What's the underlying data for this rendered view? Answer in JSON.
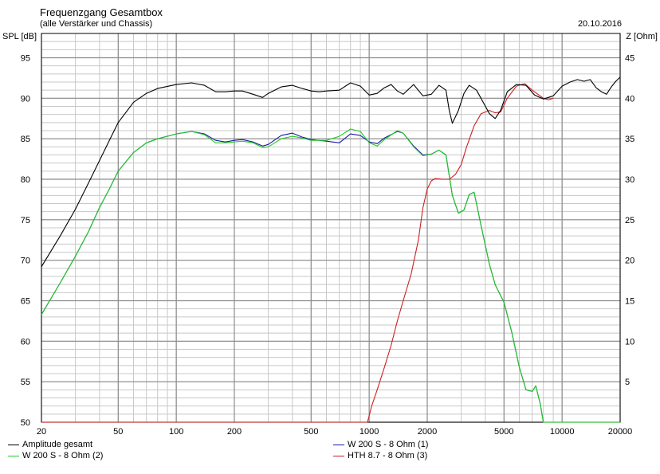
{
  "chart_data": {
    "type": "line",
    "title": "Frequenzgang Gesamtbox",
    "subtitle": "(alle Verstärker und Chassis)",
    "date": "20.10.2016",
    "ylabel_left": "SPL [dB]",
    "ylabel_right": "Z [Ohm]",
    "x_scale": "log",
    "xlim": [
      20,
      20000
    ],
    "ylim": [
      50,
      98
    ],
    "ylim_right": [
      0,
      48
    ],
    "x_ticks": [
      20,
      50,
      100,
      200,
      500,
      1000,
      2000,
      5000,
      10000,
      20000
    ],
    "y_ticks": [
      50,
      55,
      60,
      65,
      70,
      75,
      80,
      85,
      90,
      95
    ],
    "y_ticks_right": [
      5,
      10,
      15,
      20,
      25,
      30,
      35,
      40,
      45
    ],
    "grid": true,
    "legend_placement": "bottom",
    "series": [
      {
        "name": "Amplitude gesamt",
        "color": "#000000",
        "points": [
          [
            20,
            69.2
          ],
          [
            25,
            73
          ],
          [
            30,
            76.3
          ],
          [
            35,
            79.5
          ],
          [
            40,
            82.3
          ],
          [
            45,
            84.8
          ],
          [
            50,
            87
          ],
          [
            60,
            89.5
          ],
          [
            70,
            90.6
          ],
          [
            80,
            91.2
          ],
          [
            100,
            91.7
          ],
          [
            120,
            91.9
          ],
          [
            140,
            91.6
          ],
          [
            160,
            90.8
          ],
          [
            180,
            90.8
          ],
          [
            200,
            90.9
          ],
          [
            220,
            90.9
          ],
          [
            250,
            90.5
          ],
          [
            280,
            90.1
          ],
          [
            300,
            90.6
          ],
          [
            350,
            91.4
          ],
          [
            400,
            91.6
          ],
          [
            450,
            91.2
          ],
          [
            500,
            90.9
          ],
          [
            550,
            90.8
          ],
          [
            600,
            90.9
          ],
          [
            700,
            91
          ],
          [
            800,
            91.9
          ],
          [
            900,
            91.5
          ],
          [
            1000,
            90.4
          ],
          [
            1100,
            90.6
          ],
          [
            1200,
            91.3
          ],
          [
            1300,
            91.7
          ],
          [
            1400,
            90.9
          ],
          [
            1500,
            90.5
          ],
          [
            1700,
            91.7
          ],
          [
            1900,
            90.3
          ],
          [
            2100,
            90.5
          ],
          [
            2300,
            91.6
          ],
          [
            2500,
            91
          ],
          [
            2600,
            88.5
          ],
          [
            2700,
            86.9
          ],
          [
            2900,
            88.5
          ],
          [
            3100,
            90.6
          ],
          [
            3300,
            91.6
          ],
          [
            3600,
            91
          ],
          [
            3900,
            89.5
          ],
          [
            4200,
            88.1
          ],
          [
            4500,
            87.5
          ],
          [
            4800,
            88.5
          ],
          [
            5200,
            90.8
          ],
          [
            5800,
            91.7
          ],
          [
            6500,
            91.6
          ],
          [
            7200,
            90.4
          ],
          [
            8000,
            89.9
          ],
          [
            9000,
            90.3
          ],
          [
            10000,
            91.5
          ],
          [
            11000,
            92
          ],
          [
            12000,
            92.3
          ],
          [
            13000,
            92.1
          ],
          [
            14000,
            92.3
          ],
          [
            15000,
            91.3
          ],
          [
            16000,
            90.8
          ],
          [
            17000,
            90.5
          ],
          [
            18000,
            91.4
          ],
          [
            19000,
            92.1
          ],
          [
            20000,
            92.6
          ]
        ]
      },
      {
        "name": "W 200 S - 8 Ohm (1)",
        "color": "#1a1aa6",
        "points": [
          [
            20,
            63.3
          ],
          [
            25,
            67.2
          ],
          [
            30,
            70.5
          ],
          [
            35,
            73.5
          ],
          [
            40,
            76.5
          ],
          [
            45,
            78.8
          ],
          [
            50,
            81
          ],
          [
            60,
            83.3
          ],
          [
            70,
            84.5
          ],
          [
            80,
            85
          ],
          [
            100,
            85.6
          ],
          [
            120,
            85.9
          ],
          [
            140,
            85.6
          ],
          [
            160,
            84.8
          ],
          [
            180,
            84.6
          ],
          [
            200,
            84.8
          ],
          [
            220,
            84.9
          ],
          [
            250,
            84.6
          ],
          [
            280,
            84.1
          ],
          [
            300,
            84.3
          ],
          [
            350,
            85.4
          ],
          [
            400,
            85.7
          ],
          [
            450,
            85.2
          ],
          [
            500,
            84.9
          ],
          [
            600,
            84.7
          ],
          [
            700,
            84.5
          ],
          [
            800,
            85.6
          ],
          [
            900,
            85.4
          ],
          [
            1000,
            84.6
          ],
          [
            1100,
            84.4
          ],
          [
            1200,
            85.1
          ],
          [
            1400,
            85.9
          ],
          [
            1500,
            85.7
          ],
          [
            1700,
            84.1
          ],
          [
            1900,
            83
          ],
          [
            2100,
            83.1
          ],
          [
            2300,
            83.6
          ],
          [
            2500,
            83
          ],
          [
            2700,
            78
          ],
          [
            2900,
            75.8
          ],
          [
            3100,
            76.2
          ],
          [
            3300,
            78.1
          ],
          [
            3500,
            78.4
          ],
          [
            3800,
            74.3
          ],
          [
            4200,
            69.5
          ],
          [
            4500,
            67
          ],
          [
            5000,
            64.8
          ],
          [
            5500,
            61
          ],
          [
            6000,
            56.8
          ],
          [
            6500,
            54
          ],
          [
            7000,
            53.8
          ],
          [
            7300,
            54.5
          ],
          [
            7700,
            52.3
          ],
          [
            8000,
            50
          ],
          [
            20000,
            50
          ]
        ]
      },
      {
        "name": "W 200 S - 8 Ohm (2)",
        "color": "#20cc20",
        "points": [
          [
            20,
            63.3
          ],
          [
            25,
            67.2
          ],
          [
            30,
            70.5
          ],
          [
            35,
            73.5
          ],
          [
            40,
            76.5
          ],
          [
            45,
            78.8
          ],
          [
            50,
            81
          ],
          [
            60,
            83.3
          ],
          [
            70,
            84.5
          ],
          [
            80,
            85
          ],
          [
            100,
            85.6
          ],
          [
            120,
            85.9
          ],
          [
            140,
            85.5
          ],
          [
            160,
            84.5
          ],
          [
            180,
            84.5
          ],
          [
            200,
            84.6
          ],
          [
            220,
            84.7
          ],
          [
            250,
            84.5
          ],
          [
            280,
            83.9
          ],
          [
            300,
            84
          ],
          [
            350,
            85
          ],
          [
            400,
            85.3
          ],
          [
            450,
            85.1
          ],
          [
            500,
            84.8
          ],
          [
            600,
            84.8
          ],
          [
            700,
            85.3
          ],
          [
            800,
            86.2
          ],
          [
            900,
            85.9
          ],
          [
            1000,
            84.5
          ],
          [
            1100,
            84.1
          ],
          [
            1200,
            84.9
          ],
          [
            1400,
            86
          ],
          [
            1500,
            85.7
          ],
          [
            1700,
            84
          ],
          [
            1900,
            82.9
          ],
          [
            2100,
            83.1
          ],
          [
            2300,
            83.6
          ],
          [
            2500,
            83
          ],
          [
            2700,
            78
          ],
          [
            2900,
            75.8
          ],
          [
            3100,
            76.2
          ],
          [
            3300,
            78.1
          ],
          [
            3500,
            78.4
          ],
          [
            3800,
            74.3
          ],
          [
            4200,
            69.5
          ],
          [
            4500,
            67
          ],
          [
            5000,
            64.8
          ],
          [
            5500,
            61
          ],
          [
            6000,
            56.8
          ],
          [
            6500,
            54
          ],
          [
            7000,
            53.8
          ],
          [
            7300,
            54.5
          ],
          [
            7700,
            52.3
          ],
          [
            8000,
            50
          ],
          [
            20000,
            50
          ]
        ]
      },
      {
        "name": "HTH 8.7 - 8 Ohm (3)",
        "color": "#cc2020",
        "points": [
          [
            20,
            50
          ],
          [
            980,
            50
          ],
          [
            1030,
            52
          ],
          [
            1100,
            54
          ],
          [
            1200,
            56.8
          ],
          [
            1300,
            59.5
          ],
          [
            1400,
            62.5
          ],
          [
            1500,
            65
          ],
          [
            1650,
            68.3
          ],
          [
            1800,
            72.5
          ],
          [
            1900,
            76.5
          ],
          [
            2000,
            78.8
          ],
          [
            2100,
            79.8
          ],
          [
            2200,
            80.1
          ],
          [
            2400,
            80
          ],
          [
            2600,
            80
          ],
          [
            2800,
            80.6
          ],
          [
            3000,
            81.8
          ],
          [
            3200,
            84
          ],
          [
            3500,
            86.6
          ],
          [
            3800,
            88.1
          ],
          [
            4200,
            88.5
          ],
          [
            4500,
            88.2
          ],
          [
            4800,
            88.3
          ],
          [
            5200,
            90
          ],
          [
            5800,
            91.5
          ],
          [
            6400,
            91.8
          ],
          [
            7000,
            91
          ],
          [
            8000,
            90
          ],
          [
            8500,
            89.8
          ],
          [
            9000,
            90
          ]
        ]
      }
    ]
  }
}
